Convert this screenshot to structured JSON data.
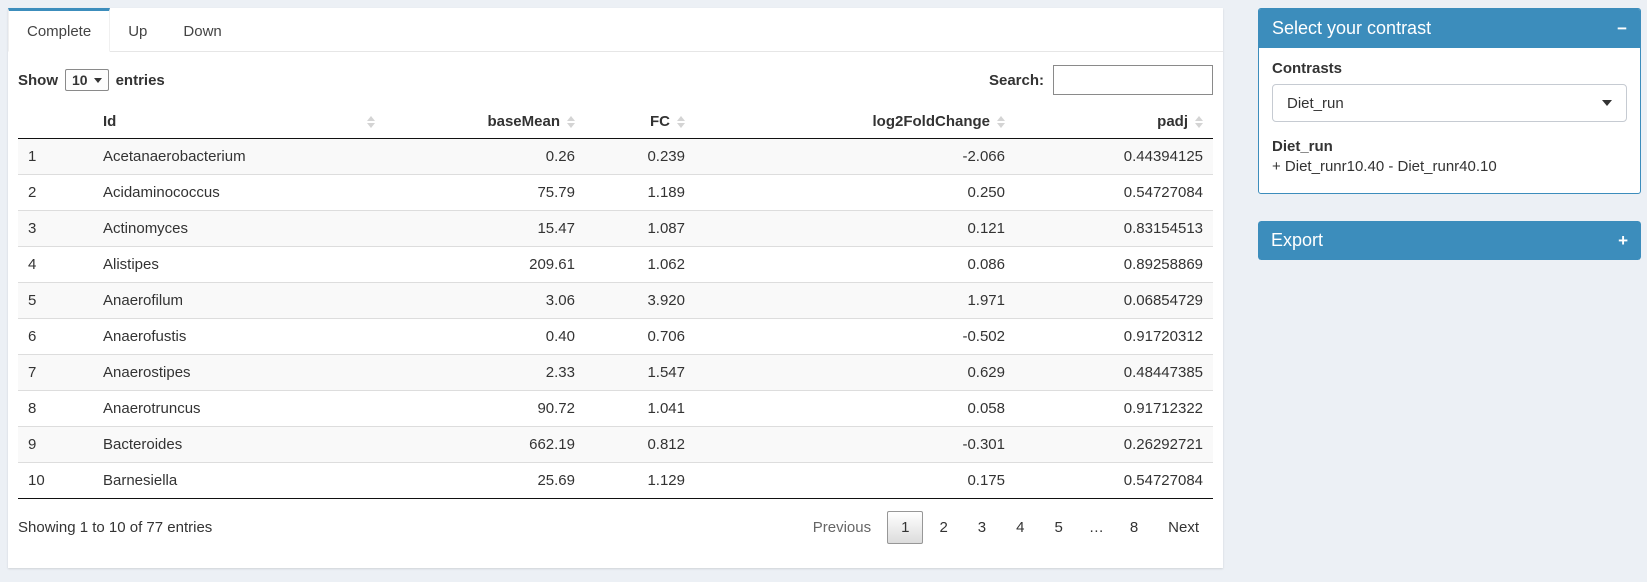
{
  "tabs": [
    {
      "label": "Complete",
      "active": true
    },
    {
      "label": "Up",
      "active": false
    },
    {
      "label": "Down",
      "active": false
    }
  ],
  "controls": {
    "show_label": "Show",
    "page_length": "10",
    "entries_label": "entries",
    "search_label": "Search:",
    "search_value": ""
  },
  "table": {
    "columns": [
      "",
      "Id",
      "baseMean",
      "FC",
      "log2FoldChange",
      "padj"
    ],
    "rows": [
      {
        "index": "1",
        "id": "Acetanaerobacterium",
        "baseMean": "0.26",
        "fc": "0.239",
        "log2fc": "-2.066",
        "padj": "0.44394125"
      },
      {
        "index": "2",
        "id": "Acidaminococcus",
        "baseMean": "75.79",
        "fc": "1.189",
        "log2fc": "0.250",
        "padj": "0.54727084"
      },
      {
        "index": "3",
        "id": "Actinomyces",
        "baseMean": "15.47",
        "fc": "1.087",
        "log2fc": "0.121",
        "padj": "0.83154513"
      },
      {
        "index": "4",
        "id": "Alistipes",
        "baseMean": "209.61",
        "fc": "1.062",
        "log2fc": "0.086",
        "padj": "0.89258869"
      },
      {
        "index": "5",
        "id": "Anaerofilum",
        "baseMean": "3.06",
        "fc": "3.920",
        "log2fc": "1.971",
        "padj": "0.06854729"
      },
      {
        "index": "6",
        "id": "Anaerofustis",
        "baseMean": "0.40",
        "fc": "0.706",
        "log2fc": "-0.502",
        "padj": "0.91720312"
      },
      {
        "index": "7",
        "id": "Anaerostipes",
        "baseMean": "2.33",
        "fc": "1.547",
        "log2fc": "0.629",
        "padj": "0.48447385"
      },
      {
        "index": "8",
        "id": "Anaerotruncus",
        "baseMean": "90.72",
        "fc": "1.041",
        "log2fc": "0.058",
        "padj": "0.91712322"
      },
      {
        "index": "9",
        "id": "Bacteroides",
        "baseMean": "662.19",
        "fc": "0.812",
        "log2fc": "-0.301",
        "padj": "0.26292721"
      },
      {
        "index": "10",
        "id": "Barnesiella",
        "baseMean": "25.69",
        "fc": "1.129",
        "log2fc": "0.175",
        "padj": "0.54727084"
      }
    ],
    "info": "Showing 1 to 10 of 77 entries"
  },
  "pagination": {
    "previous": "Previous",
    "pages": [
      "1",
      "2",
      "3",
      "4",
      "5",
      "…",
      "8"
    ],
    "current": "1",
    "next": "Next"
  },
  "contrast_box": {
    "title": "Select your contrast",
    "collapse_icon": "−",
    "contrasts_label": "Contrasts",
    "selected_contrast": "Diet_run",
    "contrast_name": "Diet_run",
    "contrast_formula": "+ Diet_runr10.40 - Diet_runr40.10"
  },
  "export_box": {
    "title": "Export",
    "collapse_icon": "+"
  },
  "colors": {
    "primary": "#3c8dbc",
    "page_bg": "#ecf0f5",
    "stripe": "#f9f9f9"
  }
}
